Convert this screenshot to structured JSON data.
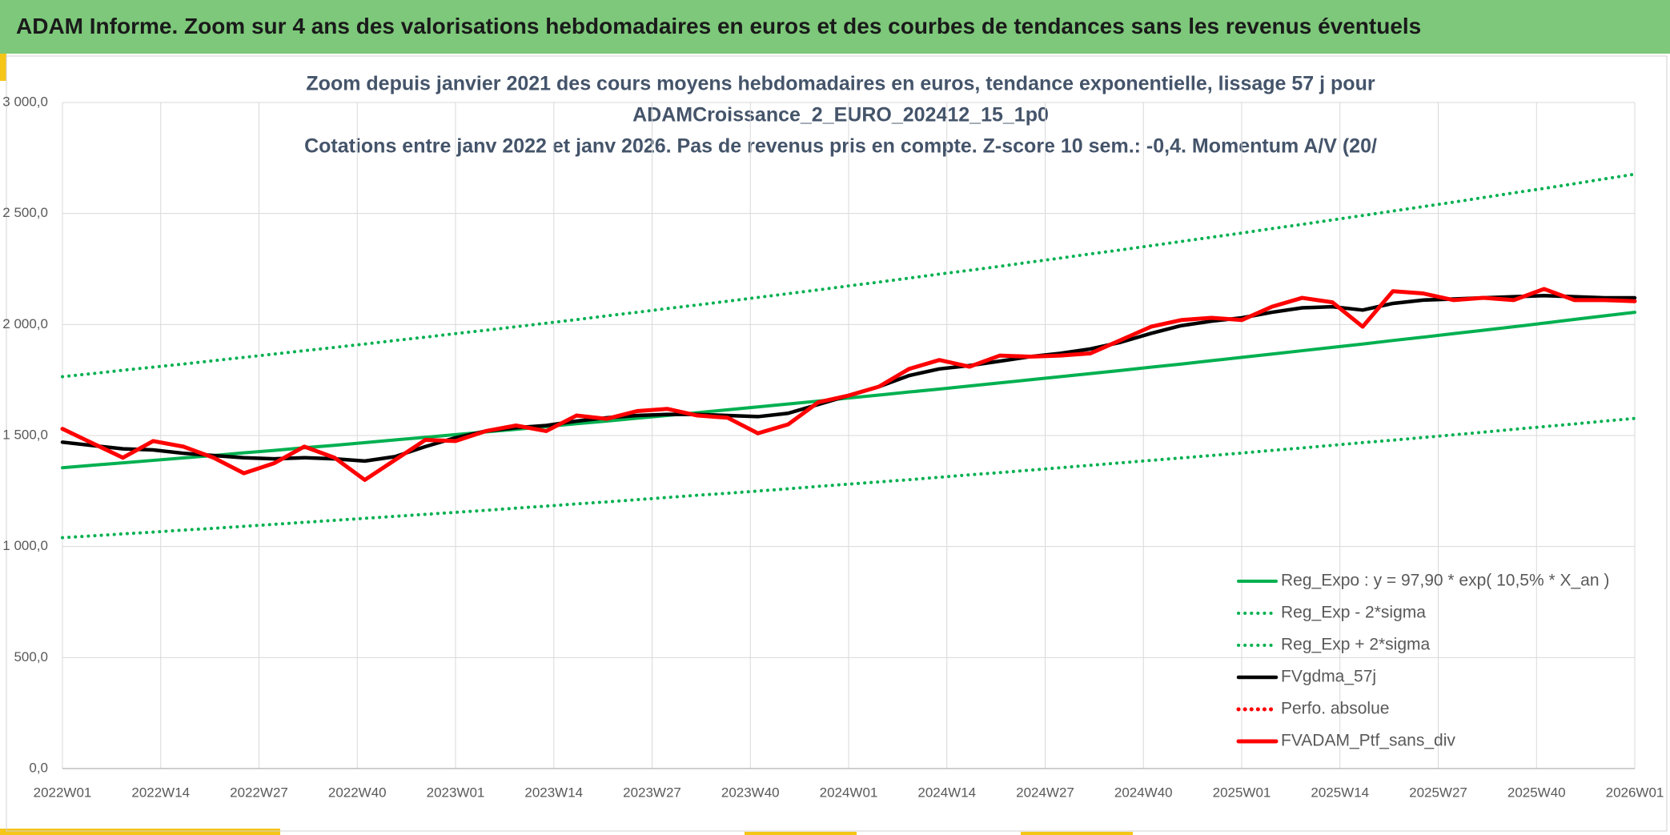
{
  "header": {
    "title": "ADAM Informe. Zoom sur 4 ans des valorisations hebdomadaires en euros et des courbes de tendances sans les revenus éventuels"
  },
  "chart_data": {
    "type": "line",
    "title": [
      "Zoom depuis janvier 2021 des cours moyens hebdomadaires en euros, tendance exponentielle, lissage 57 j pour",
      "ADAMCroissance_2_EURO_202412_15_1p0",
      "Cotations entre janv 2022 et janv 2026. Pas de revenus pris en compte. Z-score 10 sem.: -0,4. Momentum A/V (20/"
    ],
    "x": [
      0,
      4,
      8,
      12,
      16,
      20,
      24,
      28,
      32,
      36,
      40,
      44,
      48,
      52,
      56,
      60,
      64,
      68,
      72,
      76,
      80,
      84,
      88,
      92,
      96,
      100,
      104,
      108,
      112,
      116,
      120,
      124,
      128,
      132,
      136,
      140,
      144,
      148,
      152,
      156,
      160,
      164,
      168,
      172,
      176,
      180,
      184,
      188,
      192,
      196,
      200,
      204,
      208
    ],
    "xlim": [
      0,
      208
    ],
    "xticks": [
      {
        "value": 0,
        "label": "2022W01"
      },
      {
        "value": 13,
        "label": "2022W14"
      },
      {
        "value": 26,
        "label": "2022W27"
      },
      {
        "value": 39,
        "label": "2022W40"
      },
      {
        "value": 52,
        "label": "2023W01"
      },
      {
        "value": 65,
        "label": "2023W14"
      },
      {
        "value": 78,
        "label": "2023W27"
      },
      {
        "value": 91,
        "label": "2023W40"
      },
      {
        "value": 104,
        "label": "2024W01"
      },
      {
        "value": 117,
        "label": "2024W14"
      },
      {
        "value": 130,
        "label": "2024W27"
      },
      {
        "value": 143,
        "label": "2024W40"
      },
      {
        "value": 156,
        "label": "2025W01"
      },
      {
        "value": 169,
        "label": "2025W14"
      },
      {
        "value": 182,
        "label": "2025W27"
      },
      {
        "value": 195,
        "label": "2025W40"
      },
      {
        "value": 208,
        "label": "2026W01"
      }
    ],
    "ylim": [
      0,
      3000
    ],
    "yticks": [
      {
        "value": 0,
        "label": "0,0"
      },
      {
        "value": 500,
        "label": "500,0"
      },
      {
        "value": 1000,
        "label": "1 000,0"
      },
      {
        "value": 1500,
        "label": "1 500,0"
      },
      {
        "value": 2000,
        "label": "2 000,0"
      },
      {
        "value": 2500,
        "label": "2 500,0"
      },
      {
        "value": 3000,
        "label": "3 000,0"
      }
    ],
    "grid": true,
    "legend": "bottom-right",
    "series": [
      {
        "name": "Reg_Expo : y = 97,90 * exp( 10,5% *  X_an )",
        "color": "#00b050",
        "style": "solid",
        "values": [
          1355,
          1366,
          1377,
          1388,
          1399,
          1410,
          1422,
          1433,
          1445,
          1456,
          1468,
          1480,
          1492,
          1504,
          1516,
          1528,
          1540,
          1553,
          1565,
          1578,
          1590,
          1603,
          1616,
          1629,
          1642,
          1655,
          1669,
          1682,
          1696,
          1709,
          1723,
          1737,
          1751,
          1765,
          1779,
          1793,
          1808,
          1822,
          1837,
          1852,
          1867,
          1882,
          1897,
          1912,
          1928,
          1943,
          1959,
          1974,
          1990,
          2006,
          2023,
          2039,
          2055
        ]
      },
      {
        "name": "Reg_Exp - 2*sigma",
        "color": "#00b050",
        "style": "dotted",
        "values": [
          1040,
          1048,
          1057,
          1065,
          1074,
          1082,
          1091,
          1100,
          1109,
          1118,
          1127,
          1136,
          1145,
          1154,
          1163,
          1173,
          1182,
          1192,
          1201,
          1211,
          1221,
          1231,
          1240,
          1250,
          1260,
          1271,
          1281,
          1291,
          1301,
          1312,
          1323,
          1333,
          1344,
          1355,
          1366,
          1377,
          1388,
          1399,
          1410,
          1421,
          1433,
          1444,
          1456,
          1468,
          1479,
          1491,
          1503,
          1515,
          1528,
          1540,
          1552,
          1565,
          1577
        ]
      },
      {
        "name": "Reg_Exp + 2*sigma",
        "color": "#00b050",
        "style": "dotted",
        "values": [
          1765,
          1779,
          1794,
          1808,
          1822,
          1837,
          1852,
          1867,
          1882,
          1897,
          1912,
          1928,
          1943,
          1959,
          1974,
          1990,
          2006,
          2022,
          2039,
          2055,
          2072,
          2088,
          2105,
          2122,
          2139,
          2156,
          2174,
          2191,
          2209,
          2227,
          2244,
          2262,
          2281,
          2299,
          2318,
          2336,
          2355,
          2374,
          2393,
          2412,
          2432,
          2451,
          2471,
          2491,
          2511,
          2531,
          2551,
          2572,
          2593,
          2613,
          2634,
          2656,
          2677
        ]
      },
      {
        "name": "FVgdma_57j",
        "color": "#000000",
        "style": "solid",
        "values": [
          1470,
          1455,
          1440,
          1435,
          1420,
          1410,
          1400,
          1395,
          1400,
          1395,
          1385,
          1405,
          1450,
          1490,
          1520,
          1535,
          1545,
          1565,
          1580,
          1590,
          1595,
          1595,
          1590,
          1585,
          1600,
          1640,
          1680,
          1720,
          1770,
          1800,
          1815,
          1835,
          1855,
          1870,
          1890,
          1920,
          1960,
          1995,
          2015,
          2030,
          2055,
          2075,
          2080,
          2065,
          2095,
          2110,
          2115,
          2120,
          2125,
          2130,
          2125,
          2120,
          2120
        ]
      },
      {
        "name": "Perfo. absolue",
        "color": "#ff0000",
        "style": "dotted",
        "values": [
          null,
          null,
          null,
          null,
          null,
          null,
          null,
          null,
          null,
          null,
          null,
          null,
          null,
          null,
          null,
          null,
          null,
          null,
          null,
          null,
          null,
          null,
          null,
          null,
          null,
          null,
          null,
          null,
          null,
          null,
          null,
          null,
          null,
          null,
          null,
          null,
          null,
          null,
          null,
          null,
          null,
          null,
          null,
          null,
          null,
          null,
          null,
          null,
          null,
          null,
          null,
          null,
          null
        ]
      },
      {
        "name": "FVADAM_Ptf_sans_div",
        "color": "#ff0000",
        "style": "solid",
        "values": [
          1530,
          1465,
          1400,
          1475,
          1450,
          1400,
          1330,
          1375,
          1450,
          1400,
          1300,
          1390,
          1480,
          1475,
          1520,
          1545,
          1520,
          1590,
          1575,
          1610,
          1620,
          1590,
          1580,
          1510,
          1550,
          1650,
          1680,
          1720,
          1800,
          1840,
          1810,
          1860,
          1855,
          1860,
          1870,
          1930,
          1990,
          2020,
          2030,
          2020,
          2080,
          2120,
          2100,
          1990,
          2150,
          2140,
          2110,
          2120,
          2110,
          2160,
          2110,
          2110,
          2105
        ]
      }
    ]
  }
}
